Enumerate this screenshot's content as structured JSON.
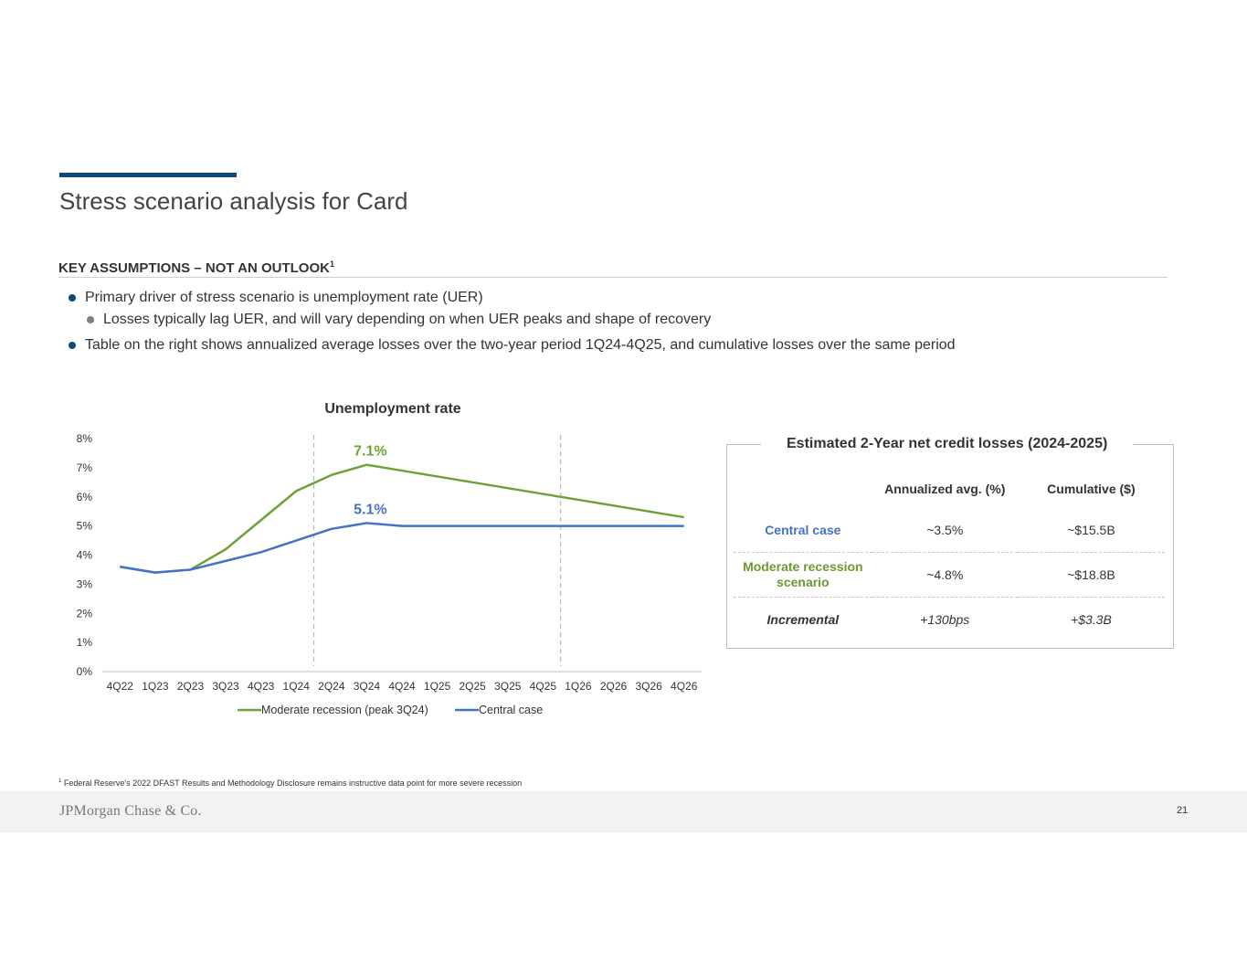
{
  "title": "Stress scenario analysis for Card",
  "section": {
    "heading": "KEY ASSUMPTIONS – NOT AN OUTLOOK",
    "heading_sup": "1"
  },
  "bullets": [
    "Primary driver of stress scenario is unemployment rate (UER)",
    "Losses typically lag UER, and will vary depending on when UER peaks and shape of recovery",
    "Table on the right shows annualized average losses over the two-year period 1Q24-4Q25, and cumulative losses over the same period"
  ],
  "chart_data": {
    "type": "line",
    "title": "Unemployment rate",
    "categories": [
      "4Q22",
      "1Q23",
      "2Q23",
      "3Q23",
      "4Q23",
      "1Q24",
      "2Q24",
      "3Q24",
      "4Q24",
      "1Q25",
      "2Q25",
      "3Q25",
      "4Q25",
      "1Q26",
      "2Q26",
      "3Q26",
      "4Q26"
    ],
    "series": [
      {
        "name": "Moderate recession (peak 3Q24)",
        "color": "#70a03a",
        "values": [
          3.6,
          3.4,
          3.5,
          4.2,
          5.2,
          6.2,
          6.75,
          7.1,
          6.9,
          6.7,
          6.5,
          6.3,
          6.1,
          5.9,
          5.7,
          5.5,
          5.3
        ]
      },
      {
        "name": "Central case",
        "color": "#4472c4",
        "values": [
          3.6,
          3.4,
          3.5,
          3.8,
          4.1,
          4.5,
          4.9,
          5.1,
          5.0,
          5.0,
          5.0,
          5.0,
          5.0,
          5.0,
          5.0,
          5.0,
          5.0
        ]
      }
    ],
    "ylim": [
      0,
      8
    ],
    "yticks": [
      "0%",
      "1%",
      "2%",
      "3%",
      "4%",
      "5%",
      "6%",
      "7%",
      "8%"
    ],
    "annotations": [
      {
        "text": "7.1%",
        "category": "3Q24",
        "series": "Moderate recession (peak 3Q24)"
      },
      {
        "text": "5.1%",
        "category": "3Q24",
        "series": "Central case"
      }
    ],
    "reference_lines": [
      "1Q24",
      "4Q25"
    ],
    "legend": "bottom"
  },
  "losses": {
    "title": "Estimated 2-Year net credit losses (2024-2025)",
    "headers": [
      "",
      "Annualized avg. (%)",
      "Cumulative ($)"
    ],
    "rows": [
      {
        "label": "Central case",
        "annualized": "~3.5%",
        "cumulative": "~$15.5B"
      },
      {
        "label": "Moderate recession scenario",
        "annualized": "~4.8%",
        "cumulative": "~$18.8B"
      },
      {
        "label": "Incremental",
        "annualized": "+130bps",
        "cumulative": "+$3.3B"
      }
    ]
  },
  "footnote": {
    "sup": "1",
    "text": "Federal Reserve's 2022 DFAST Results and Methodology Disclosure remains instructive data point for more severe recession"
  },
  "footer": {
    "logo": "JPMorgan Chase & Co.",
    "page_number": "21"
  }
}
